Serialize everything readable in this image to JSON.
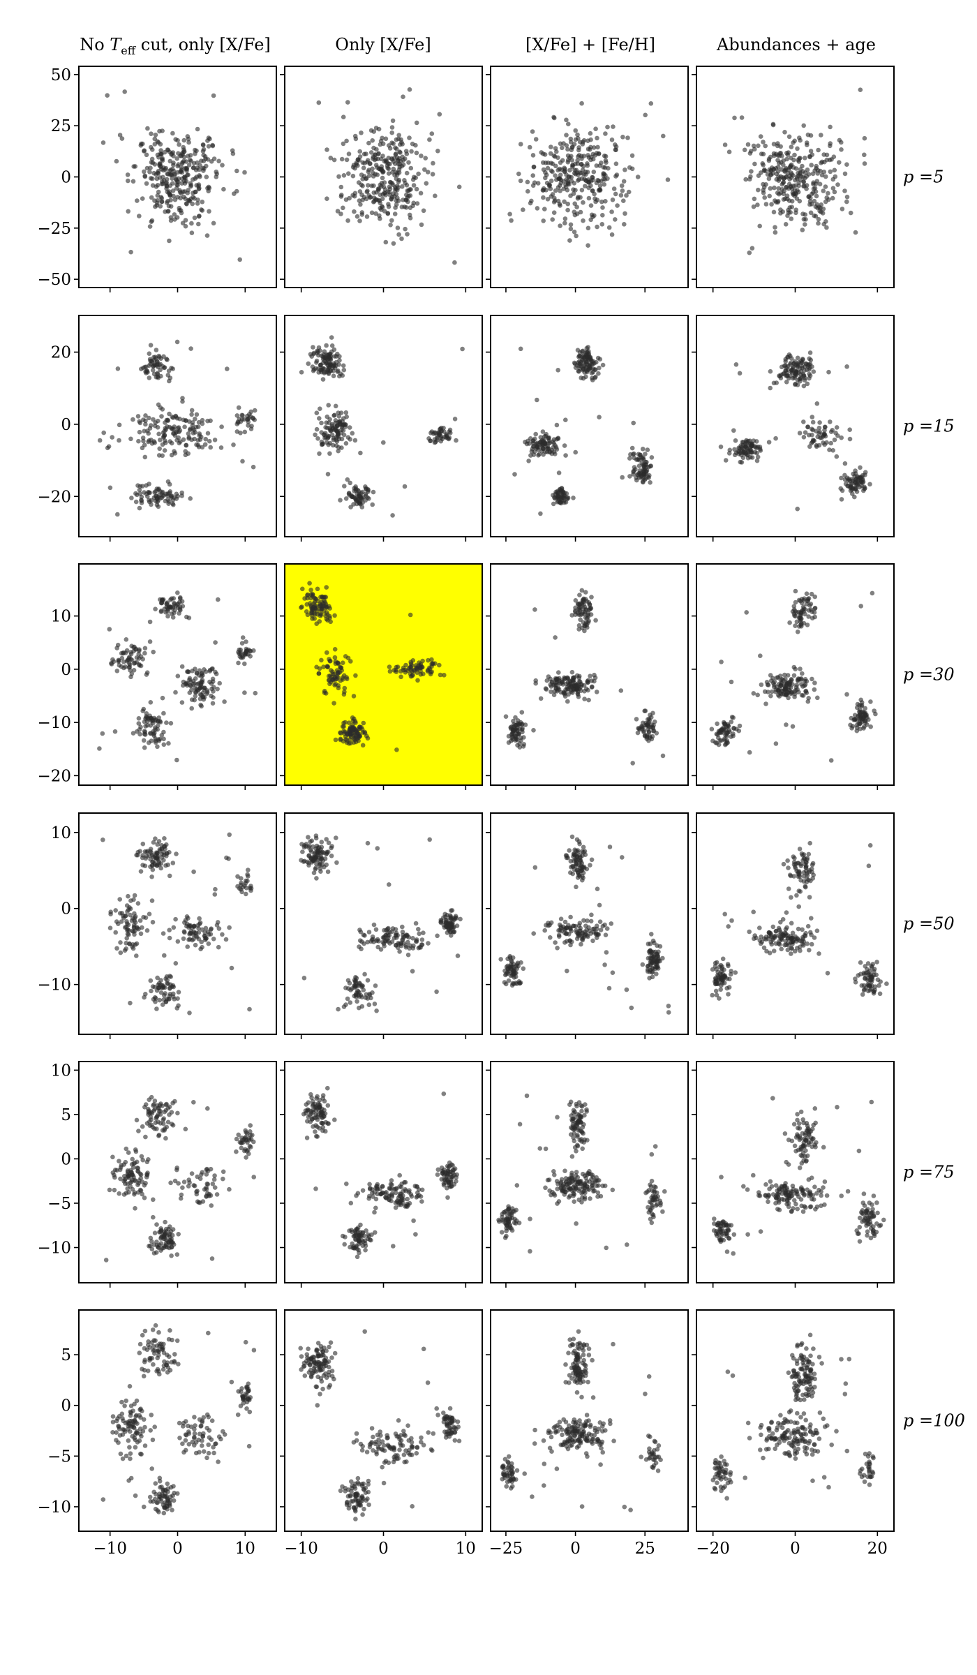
{
  "figure": {
    "column_titles": [
      "No $T_{\\rm eff}$ cut, only [X/Fe]",
      "Only [X/Fe]",
      "[X/Fe] + [Fe/H]",
      "Abundances + age"
    ],
    "row_labels": [
      "p =5",
      "p =15",
      "p =30",
      "p =50",
      "p =75",
      "p =100"
    ],
    "highlight": {
      "row": 2,
      "col": 1,
      "color": "#ffff00"
    },
    "point_color": "#2b2b2b"
  },
  "chart_data": {
    "type": "scatter",
    "description_of_layout": "6 x 4 grid of t-SNE projections; rows = perplexity, columns = input feature sets",
    "rows": [
      {
        "label": "p =5",
        "ylim": [
          -52,
          52
        ],
        "yticks": [
          -50,
          -25,
          0,
          25,
          50
        ]
      },
      {
        "label": "p =15",
        "ylim": [
          -30,
          29
        ],
        "yticks": [
          -20,
          0,
          20
        ]
      },
      {
        "label": "p =30",
        "ylim": [
          -21,
          19
        ],
        "yticks": [
          -20,
          -10,
          0,
          10
        ]
      },
      {
        "label": "p =50",
        "ylim": [
          -16,
          12
        ],
        "yticks": [
          -10,
          0,
          10
        ]
      },
      {
        "label": "p =75",
        "ylim": [
          -13.5,
          10.5
        ],
        "yticks": [
          -10,
          -5,
          0,
          5,
          10
        ]
      },
      {
        "label": "p =100",
        "ylim": [
          -12,
          9
        ],
        "yticks": [
          -10,
          -5,
          0,
          5
        ]
      }
    ],
    "columns": [
      {
        "title": "No $T_{\\rm eff}$ cut, only [X/Fe]",
        "xlim": [
          -14,
          14
        ],
        "xticks": [
          -10,
          0,
          10
        ]
      },
      {
        "title": "Only [X/Fe]",
        "xlim": [
          -11.5,
          11.5
        ],
        "xticks": [
          -10,
          0,
          10
        ]
      },
      {
        "title": "[X/Fe] + [Fe/H]",
        "xlim": [
          -29,
          39
        ],
        "xticks": [
          -25,
          0,
          25
        ]
      },
      {
        "title": "Abundances + age",
        "xlim": [
          -23,
          23
        ],
        "xticks": [
          -20,
          0,
          20
        ]
      }
    ],
    "points_per_panel": 320,
    "shapes": {
      "c0r0": {
        "blobs": [
          [
            0,
            0,
            11,
            40,
            1
          ]
        ],
        "noise": 0.06
      },
      "c1r0": {
        "blobs": [
          [
            0,
            0,
            9.5,
            44,
            1
          ]
        ],
        "noise": 0.04
      },
      "c2r0": {
        "blobs": [
          [
            0,
            0,
            34,
            42,
            1
          ]
        ],
        "noise": 0.04
      },
      "c3r0": {
        "blobs": [
          [
            0,
            0,
            22,
            40,
            1
          ]
        ],
        "noise": 0.04
      },
      "c0r1": {
        "blobs": [
          [
            -3,
            17,
            5,
            8,
            0.25
          ],
          [
            0,
            -2,
            12,
            11,
            0.5
          ],
          [
            -3,
            -20,
            6,
            6,
            0.2
          ],
          [
            10,
            1,
            3,
            5,
            0.1
          ]
        ],
        "noise": 0.05
      },
      "c1r1": {
        "blobs": [
          [
            -7,
            17,
            3.5,
            8,
            0.35
          ],
          [
            -6,
            -2,
            4,
            10,
            0.3
          ],
          [
            -3,
            -20,
            3,
            6,
            0.2
          ],
          [
            7,
            -3,
            3,
            5,
            0.15
          ]
        ],
        "noise": 0.04
      },
      "c2r1": {
        "blobs": [
          [
            4,
            17,
            8,
            8,
            0.3
          ],
          [
            -12,
            -6,
            12,
            5,
            0.3
          ],
          [
            -5,
            -20,
            6,
            4,
            0.15
          ],
          [
            24,
            -12,
            7,
            8,
            0.25
          ]
        ],
        "noise": 0.05
      },
      "c3r1": {
        "blobs": [
          [
            0,
            15,
            8,
            8,
            0.35
          ],
          [
            -12,
            -7,
            8,
            5,
            0.25
          ],
          [
            7,
            -3,
            8,
            8,
            0.2
          ],
          [
            15,
            -16,
            5,
            6,
            0.2
          ]
        ],
        "noise": 0.05
      },
      "c0r2": {
        "blobs": [
          [
            -1,
            12,
            4,
            4,
            0.15
          ],
          [
            -7,
            2,
            5,
            5,
            0.2
          ],
          [
            -4,
            -11,
            4,
            6,
            0.25
          ],
          [
            3,
            -3,
            5,
            7,
            0.3
          ],
          [
            10,
            3,
            2,
            4,
            0.1
          ]
        ],
        "noise": 0.05
      },
      "c1r2": {
        "blobs": [
          [
            -8,
            12,
            3.5,
            6,
            0.3
          ],
          [
            -6,
            -1,
            3.5,
            6,
            0.25
          ],
          [
            -4,
            -12,
            3,
            4,
            0.2
          ],
          [
            4,
            0,
            6,
            3,
            0.25
          ]
        ],
        "noise": 0.04
      },
      "c2r2": {
        "blobs": [
          [
            3,
            11,
            6,
            6,
            0.25
          ],
          [
            -2,
            -3,
            16,
            4,
            0.4
          ],
          [
            -21,
            -12,
            7,
            5,
            0.2
          ],
          [
            26,
            -11,
            6,
            5,
            0.15
          ]
        ],
        "noise": 0.05
      },
      "c3r2": {
        "blobs": [
          [
            2,
            11,
            6,
            6,
            0.25
          ],
          [
            -2,
            -3,
            10,
            5,
            0.35
          ],
          [
            -17,
            -12,
            5,
            5,
            0.2
          ],
          [
            16,
            -9,
            5,
            5,
            0.2
          ]
        ],
        "noise": 0.05
      },
      "c0r3": {
        "blobs": [
          [
            -3,
            7,
            4,
            4,
            0.2
          ],
          [
            -7,
            -2,
            5,
            6,
            0.25
          ],
          [
            -2,
            -11,
            4,
            4,
            0.2
          ],
          [
            3,
            -3,
            6,
            4,
            0.25
          ],
          [
            10,
            3,
            2,
            4,
            0.1
          ]
        ],
        "noise": 0.05
      },
      "c1r3": {
        "blobs": [
          [
            -8,
            7,
            3,
            4,
            0.3
          ],
          [
            -3,
            -11,
            3,
            4,
            0.2
          ],
          [
            1,
            -4,
            7,
            3,
            0.3
          ],
          [
            8,
            -2,
            2,
            3,
            0.2
          ]
        ],
        "noise": 0.04
      },
      "c2r3": {
        "blobs": [
          [
            1,
            6,
            6,
            5,
            0.25
          ],
          [
            0,
            -3,
            17,
            3,
            0.35
          ],
          [
            -23,
            -8,
            6,
            4,
            0.2
          ],
          [
            28,
            -7,
            5,
            4,
            0.2
          ]
        ],
        "noise": 0.05
      },
      "c3r3": {
        "blobs": [
          [
            2,
            5,
            6,
            5,
            0.25
          ],
          [
            -2,
            -4,
            13,
            3,
            0.35
          ],
          [
            -18,
            -9,
            4,
            4,
            0.2
          ],
          [
            18,
            -9,
            5,
            4,
            0.2
          ]
        ],
        "noise": 0.05
      },
      "c0r4": {
        "blobs": [
          [
            -3,
            5,
            5,
            4,
            0.25
          ],
          [
            -7,
            -2,
            5,
            5,
            0.25
          ],
          [
            -2,
            -9,
            4,
            3,
            0.2
          ],
          [
            3,
            -3,
            6,
            4,
            0.2
          ],
          [
            10,
            2,
            2,
            3,
            0.1
          ]
        ],
        "noise": 0.05
      },
      "c1r4": {
        "blobs": [
          [
            -8,
            5,
            3,
            4,
            0.3
          ],
          [
            -3,
            -9,
            3,
            3,
            0.2
          ],
          [
            1,
            -4,
            7,
            3,
            0.3
          ],
          [
            8,
            -2,
            2,
            3,
            0.2
          ]
        ],
        "noise": 0.04
      },
      "c2r4": {
        "blobs": [
          [
            1,
            4,
            6,
            5,
            0.25
          ],
          [
            0,
            -3,
            17,
            3,
            0.4
          ],
          [
            -24,
            -7,
            6,
            3,
            0.2
          ],
          [
            28,
            -5,
            5,
            4,
            0.15
          ]
        ],
        "noise": 0.05
      },
      "c3r4": {
        "blobs": [
          [
            2,
            2,
            6,
            5,
            0.25
          ],
          [
            -1,
            -4,
            14,
            3,
            0.4
          ],
          [
            -18,
            -8,
            5,
            3,
            0.15
          ],
          [
            18,
            -7,
            5,
            4,
            0.2
          ]
        ],
        "noise": 0.05
      },
      "c0r5": {
        "blobs": [
          [
            -3,
            5,
            5,
            4,
            0.25
          ],
          [
            -7,
            -2,
            5,
            5,
            0.25
          ],
          [
            -2,
            -9,
            4,
            3,
            0.2
          ],
          [
            3,
            -3,
            6,
            4,
            0.2
          ],
          [
            10,
            1,
            2,
            3,
            0.1
          ]
        ],
        "noise": 0.05
      },
      "c1r5": {
        "blobs": [
          [
            -8,
            4,
            3,
            4,
            0.3
          ],
          [
            -3,
            -9,
            3,
            3,
            0.2
          ],
          [
            1,
            -4,
            7,
            3,
            0.3
          ],
          [
            8,
            -2,
            2,
            3,
            0.2
          ]
        ],
        "noise": 0.04
      },
      "c2r5": {
        "blobs": [
          [
            1,
            4,
            7,
            5,
            0.3
          ],
          [
            0,
            -3,
            19,
            3,
            0.45
          ],
          [
            -24,
            -7,
            5,
            3,
            0.15
          ],
          [
            28,
            -5,
            4,
            3,
            0.1
          ]
        ],
        "noise": 0.05
      },
      "c3r5": {
        "blobs": [
          [
            2,
            3,
            6,
            5,
            0.3
          ],
          [
            -1,
            -3,
            15,
            4,
            0.45
          ],
          [
            -18,
            -7,
            4,
            3,
            0.15
          ],
          [
            18,
            -6,
            4,
            3,
            0.1
          ]
        ],
        "noise": 0.05
      }
    }
  }
}
